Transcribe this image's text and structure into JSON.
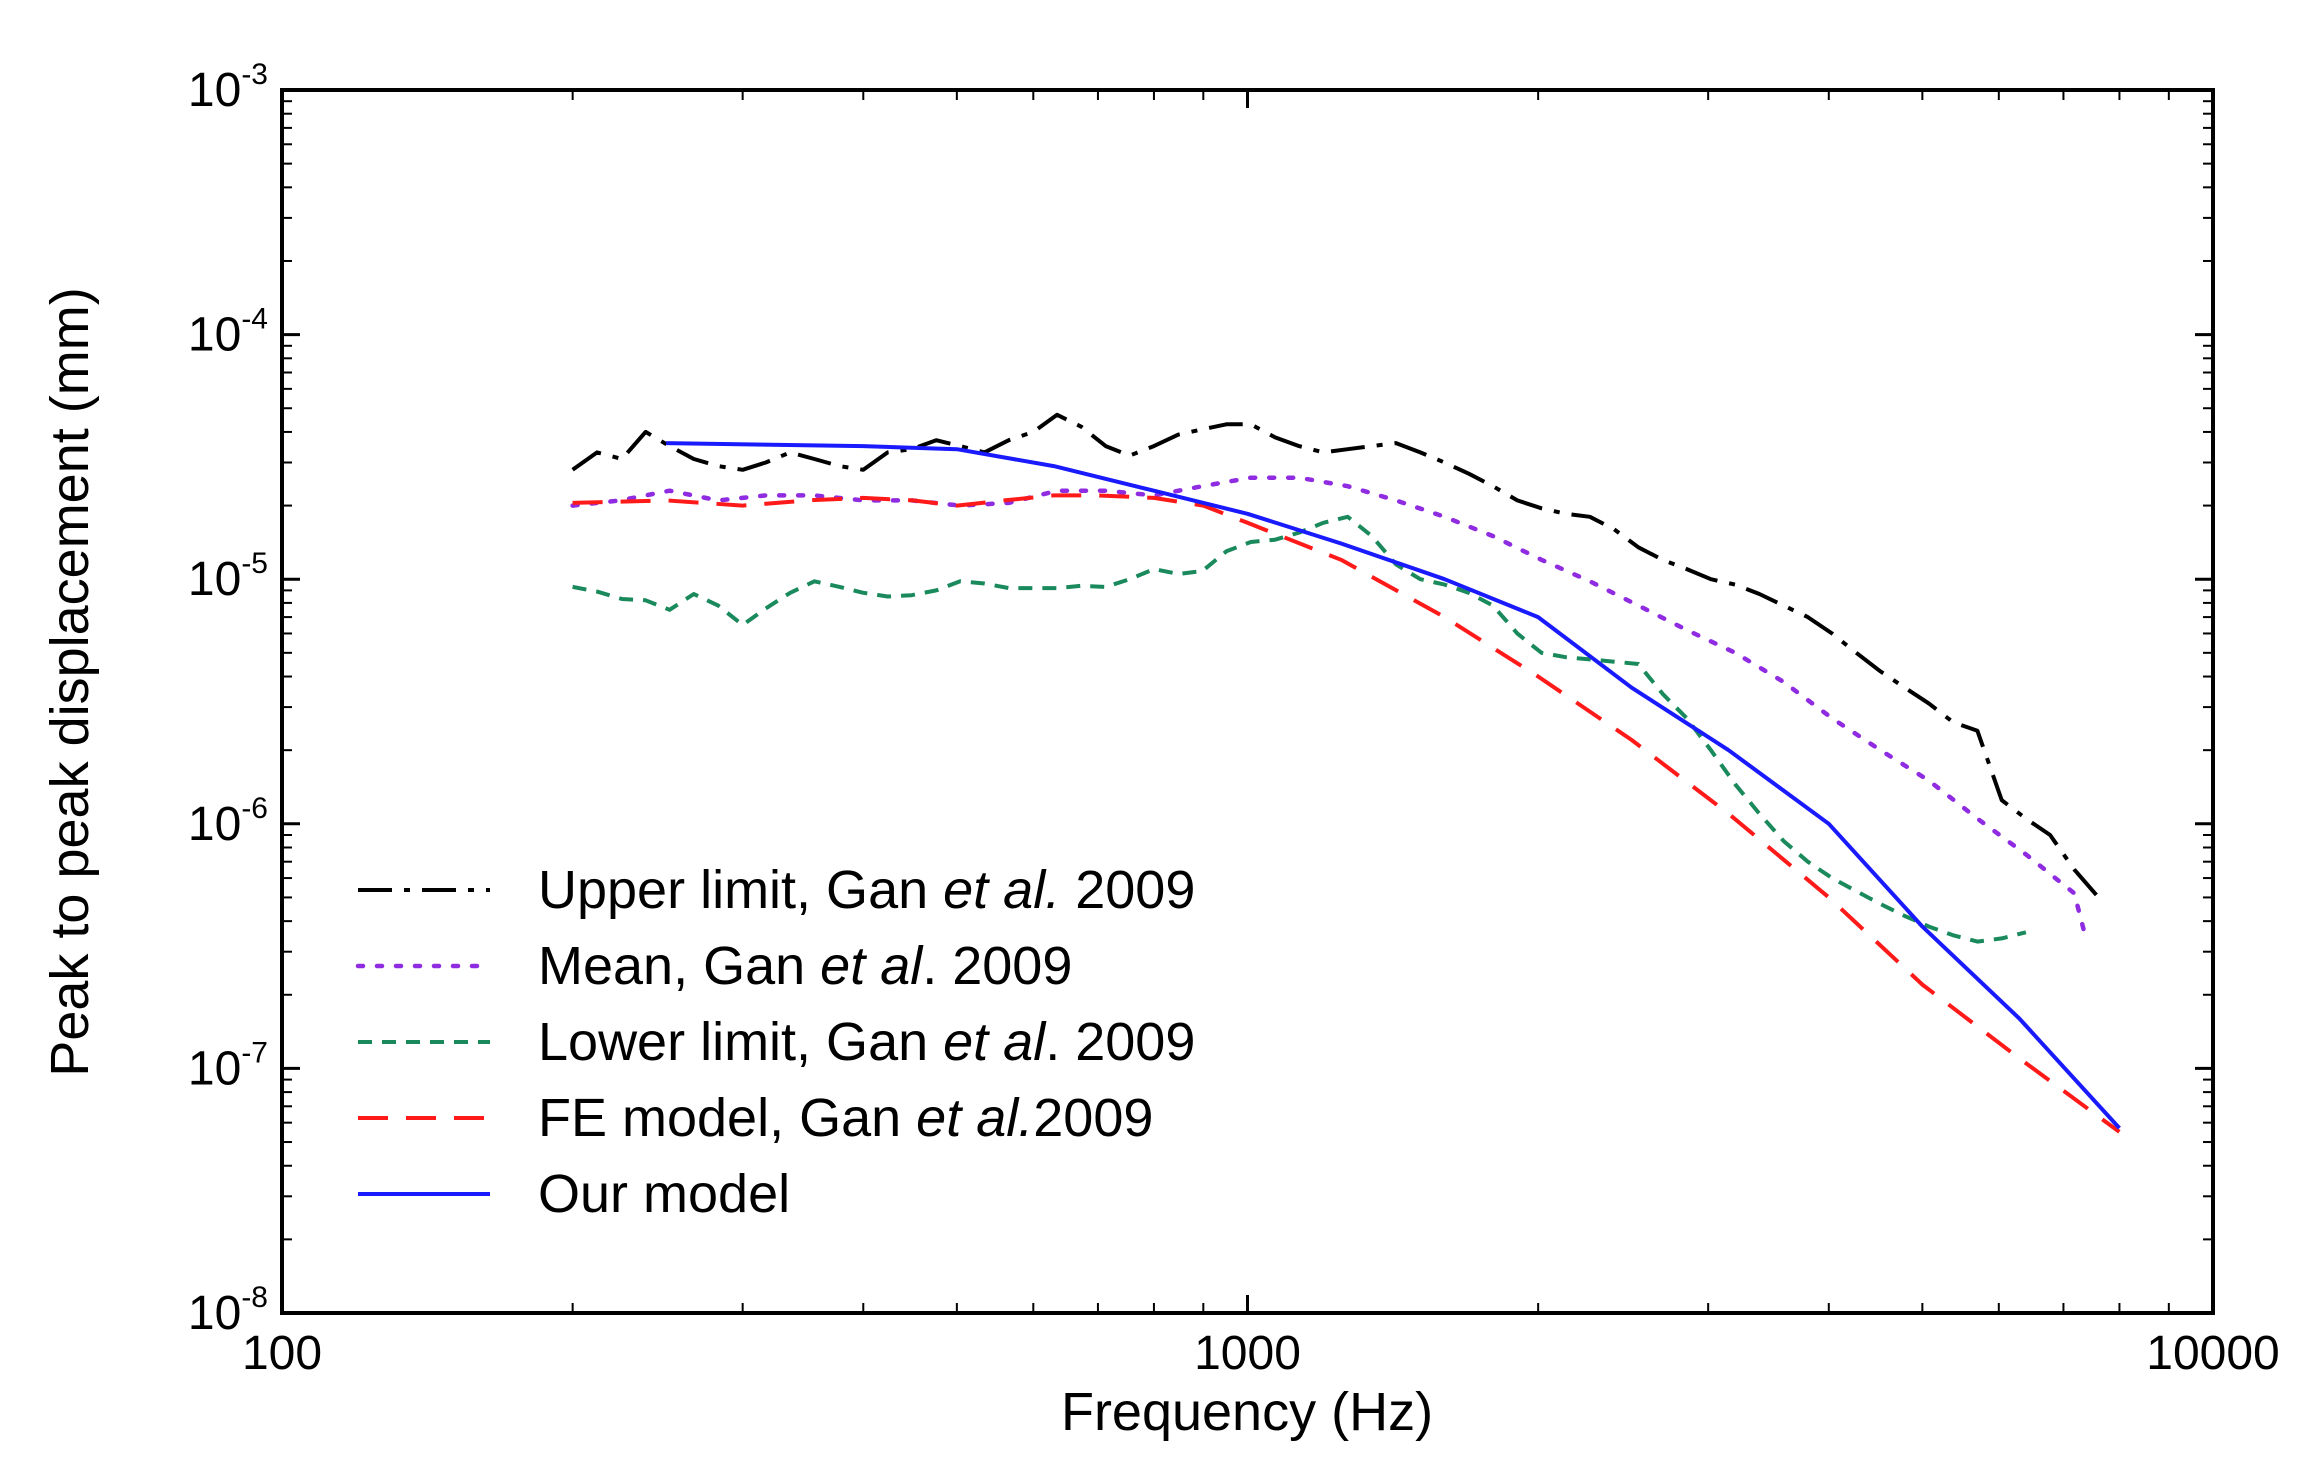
{
  "chart_data": {
    "type": "line",
    "xscale": "log",
    "yscale": "log",
    "xlabel": "Frequency (Hz)",
    "ylabel": "Peak to peak displacement (mm)",
    "xlim": [
      100,
      10000
    ],
    "ylim": [
      1e-08,
      0.001
    ],
    "grid": false,
    "legend_position": "bottom-left",
    "x_ticks": [
      {
        "value": 100,
        "label": "100"
      },
      {
        "value": 1000,
        "label": "1000"
      },
      {
        "value": 10000,
        "label": "10000"
      }
    ],
    "y_ticks": [
      {
        "value": 1e-08,
        "base": "10",
        "exp": "-8"
      },
      {
        "value": 1e-07,
        "base": "10",
        "exp": "-7"
      },
      {
        "value": 1e-06,
        "base": "10",
        "exp": "-6"
      },
      {
        "value": 1e-05,
        "base": "10",
        "exp": "-5"
      },
      {
        "value": 0.0001,
        "base": "10",
        "exp": "-4"
      },
      {
        "value": 0.001,
        "base": "10",
        "exp": "-3"
      }
    ],
    "series": [
      {
        "name": "Upper limit, Gan et al. 2009",
        "legend_pre": "Upper limit, Gan ",
        "legend_italic": "et al.",
        "legend_post": " 2009",
        "color": "#000000",
        "style": "dashdot",
        "x": [
          200,
          212,
          225,
          238,
          252,
          267,
          283,
          300,
          317,
          336,
          356,
          378,
          400,
          424,
          449,
          476,
          504,
          534,
          566,
          600,
          635,
          673,
          713,
          755,
          800,
          848,
          898,
          951,
          1008,
          1068,
          1131,
          1198,
          1270,
          1345,
          1425,
          1510,
          1600,
          1695,
          1796,
          1903,
          2016,
          2136,
          2263,
          2397,
          2540,
          2691,
          2851,
          3020,
          3200,
          3390,
          3592,
          3805,
          4032,
          4271,
          4525,
          4795,
          5080,
          5382,
          5702,
          6041,
          6400,
          6781,
          7184,
          7611
        ],
        "y": [
          2.8e-05,
          3.3e-05,
          3.1e-05,
          4e-05,
          3.5e-05,
          3.1e-05,
          2.9e-05,
          2.8e-05,
          3e-05,
          3.3e-05,
          3.1e-05,
          2.9e-05,
          2.8e-05,
          3.3e-05,
          3.4e-05,
          3.7e-05,
          3.5e-05,
          3.3e-05,
          3.7e-05,
          4e-05,
          4.7e-05,
          4.2e-05,
          3.5e-05,
          3.2e-05,
          3.5e-05,
          3.9e-05,
          4.1e-05,
          4.3e-05,
          4.3e-05,
          3.8e-05,
          3.5e-05,
          3.3e-05,
          3.4e-05,
          3.5e-05,
          3.6e-05,
          3.3e-05,
          3e-05,
          2.7e-05,
          2.4e-05,
          2.1e-05,
          1.95e-05,
          1.85e-05,
          1.8e-05,
          1.6e-05,
          1.35e-05,
          1.2e-05,
          1.1e-05,
          1e-05,
          9.5e-06,
          8.7e-06,
          7.8e-06,
          7e-06,
          6e-06,
          5e-06,
          4.2e-06,
          3.6e-06,
          3.1e-06,
          2.6e-06,
          2.4e-06,
          1.25e-06,
          1.05e-06,
          9e-07,
          6.5e-07,
          5e-07
        ]
      },
      {
        "name": "Mean, Gan et al. 2009",
        "legend_pre": "Mean, Gan ",
        "legend_italic": "et al",
        "legend_post": ". 2009",
        "color": "#8f2be0",
        "style": "dotted",
        "x": [
          200,
          224,
          252,
          283,
          317,
          356,
          400,
          449,
          504,
          566,
          635,
          713,
          800,
          898,
          1008,
          1131,
          1270,
          1425,
          1600,
          1796,
          2016,
          2263,
          2540,
          2851,
          3200,
          3592,
          4032,
          4525,
          5080,
          5702,
          6400,
          7184,
          7400
        ],
        "y": [
          2e-05,
          2.1e-05,
          2.3e-05,
          2.1e-05,
          2.2e-05,
          2.2e-05,
          2.1e-05,
          2.1e-05,
          2e-05,
          2.05e-05,
          2.3e-05,
          2.3e-05,
          2.2e-05,
          2.4e-05,
          2.6e-05,
          2.6e-05,
          2.4e-05,
          2.1e-05,
          1.8e-05,
          1.5e-05,
          1.2e-05,
          9.8e-06,
          7.8e-06,
          6.2e-06,
          5e-06,
          3.8e-06,
          2.7e-06,
          2e-06,
          1.5e-06,
          1.05e-06,
          7.5e-07,
          5.2e-07,
          3.3e-07
        ]
      },
      {
        "name": "Lower limit, Gan et al. 2009",
        "legend_pre": "Lower limit, Gan ",
        "legend_italic": "et al",
        "legend_post": ". 2009",
        "color": "#1a8a5c",
        "style": "shortdash",
        "x": [
          200,
          212,
          225,
          238,
          252,
          267,
          283,
          300,
          317,
          336,
          356,
          378,
          400,
          424,
          449,
          476,
          504,
          534,
          566,
          600,
          635,
          673,
          713,
          755,
          800,
          848,
          898,
          951,
          1008,
          1068,
          1131,
          1198,
          1270,
          1345,
          1425,
          1510,
          1600,
          1695,
          1796,
          1903,
          2016,
          2136,
          2263,
          2397,
          2540,
          2691,
          2851,
          3020,
          3200,
          3390,
          3592,
          3805,
          4032,
          4271,
          4525,
          4795,
          5080,
          5382,
          5702,
          6041,
          6400
        ],
        "y": [
          9.3e-06,
          8.9e-06,
          8.3e-06,
          8.2e-06,
          7.5e-06,
          8.7e-06,
          7.8e-06,
          6.5e-06,
          7.6e-06,
          8.8e-06,
          9.8e-06,
          9.3e-06,
          8.8e-06,
          8.5e-06,
          8.6e-06,
          9e-06,
          9.8e-06,
          9.6e-06,
          9.2e-06,
          9.2e-06,
          9.2e-06,
          9.4e-06,
          9.3e-06,
          1e-05,
          1.1e-05,
          1.05e-05,
          1.08e-05,
          1.3e-05,
          1.42e-05,
          1.45e-05,
          1.55e-05,
          1.7e-05,
          1.8e-05,
          1.5e-05,
          1.15e-05,
          1e-05,
          9.5e-06,
          8.8e-06,
          7.8e-06,
          6e-06,
          5e-06,
          4.8e-06,
          4.7e-06,
          4.6e-06,
          4.5e-06,
          3.4e-06,
          2.7e-06,
          2e-06,
          1.45e-06,
          1.1e-06,
          8.5e-07,
          7e-07,
          6e-07,
          5.3e-07,
          4.7e-07,
          4.2e-07,
          3.8e-07,
          3.5e-07,
          3.3e-07,
          3.4e-07,
          3.6e-07
        ]
      },
      {
        "name": "FE model, Gan et al.2009",
        "legend_pre": "FE model, Gan ",
        "legend_italic": "et al.",
        "legend_post": "2009",
        "color": "#ff1a1a",
        "style": "longdash",
        "x": [
          200,
          250,
          300,
          350,
          400,
          450,
          500,
          560,
          630,
          700,
          800,
          900,
          1000,
          1250,
          1600,
          2000,
          2500,
          3150,
          4000,
          5000,
          6300,
          8000
        ],
        "y": [
          2.05e-05,
          2.1e-05,
          2e-05,
          2.1e-05,
          2.15e-05,
          2.1e-05,
          2e-05,
          2.1e-05,
          2.2e-05,
          2.2e-05,
          2.15e-05,
          2e-05,
          1.7e-05,
          1.2e-05,
          7e-06,
          4e-06,
          2.2e-06,
          1.1e-06,
          5e-07,
          2.2e-07,
          1.1e-07,
          5.5e-08
        ]
      },
      {
        "name": "Our model",
        "legend_pre": "Our model",
        "legend_italic": "",
        "legend_post": "",
        "color": "#1a1aff",
        "style": "solid",
        "x": [
          250,
          315,
          400,
          500,
          630,
          800,
          1000,
          1250,
          1600,
          2000,
          2500,
          3150,
          4000,
          5000,
          6300,
          8000
        ],
        "y": [
          3.6e-05,
          3.55e-05,
          3.5e-05,
          3.4e-05,
          2.9e-05,
          2.3e-05,
          1.85e-05,
          1.4e-05,
          1e-05,
          7e-06,
          3.6e-06,
          2e-06,
          1e-06,
          3.8e-07,
          1.6e-07,
          5.7e-08
        ]
      }
    ]
  }
}
